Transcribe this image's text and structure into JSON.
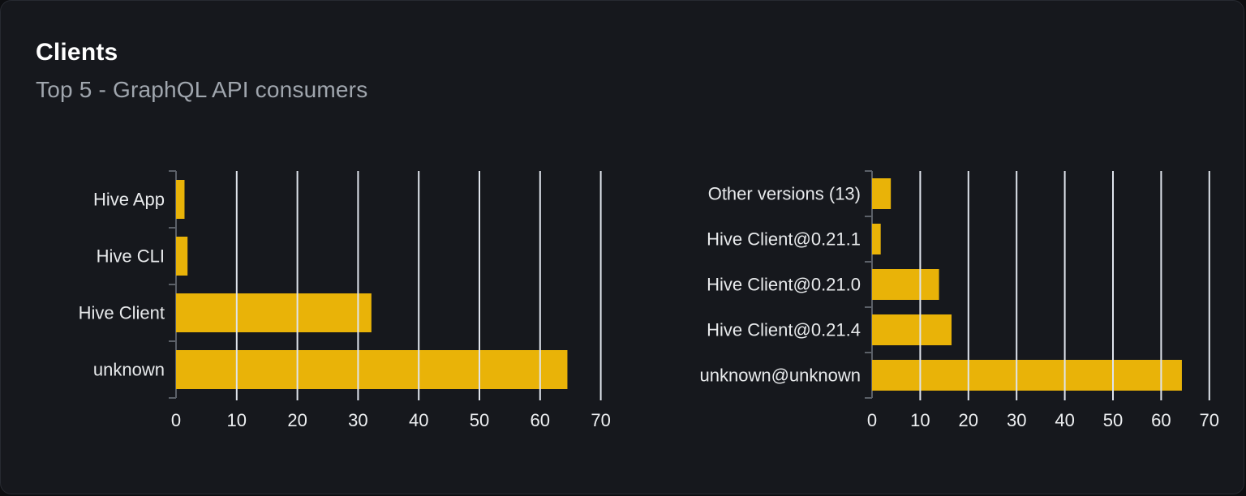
{
  "card": {
    "title": "Clients",
    "subtitle": "Top 5 - GraphQL API consumers"
  },
  "colors": {
    "page_bg": "#0d0e11",
    "card_bg": "#16181d",
    "card_border": "#272a31",
    "title_text": "#ffffff",
    "subtitle_text": "#a0a6ae",
    "bar": "#e9b308",
    "gridline": "#dfe4ec",
    "axis": "#5b6068",
    "category_text": "#e8eaec",
    "tick_text": "#eef0f2"
  },
  "chart_data": [
    {
      "type": "bar",
      "orientation": "horizontal",
      "categories": [
        "Hive App",
        "Hive CLI",
        "Hive Client",
        "unknown"
      ],
      "values": [
        1.4,
        1.9,
        32.2,
        64.5
      ],
      "xlabel": "",
      "ylabel": "",
      "xlim": [
        0,
        70
      ],
      "xticks": [
        0,
        10,
        20,
        30,
        40,
        50,
        60,
        70
      ],
      "grid": true,
      "legend": false
    },
    {
      "type": "bar",
      "orientation": "horizontal",
      "categories": [
        "Other versions (13)",
        "Hive Client@0.21.1",
        "Hive Client@0.21.0",
        "Hive Client@0.21.4",
        "unknown@unknown"
      ],
      "values": [
        3.9,
        1.8,
        13.9,
        16.5,
        64.3
      ],
      "xlabel": "",
      "ylabel": "",
      "xlim": [
        0,
        70
      ],
      "xticks": [
        0,
        10,
        20,
        30,
        40,
        50,
        60,
        70
      ],
      "grid": true,
      "legend": false
    }
  ]
}
